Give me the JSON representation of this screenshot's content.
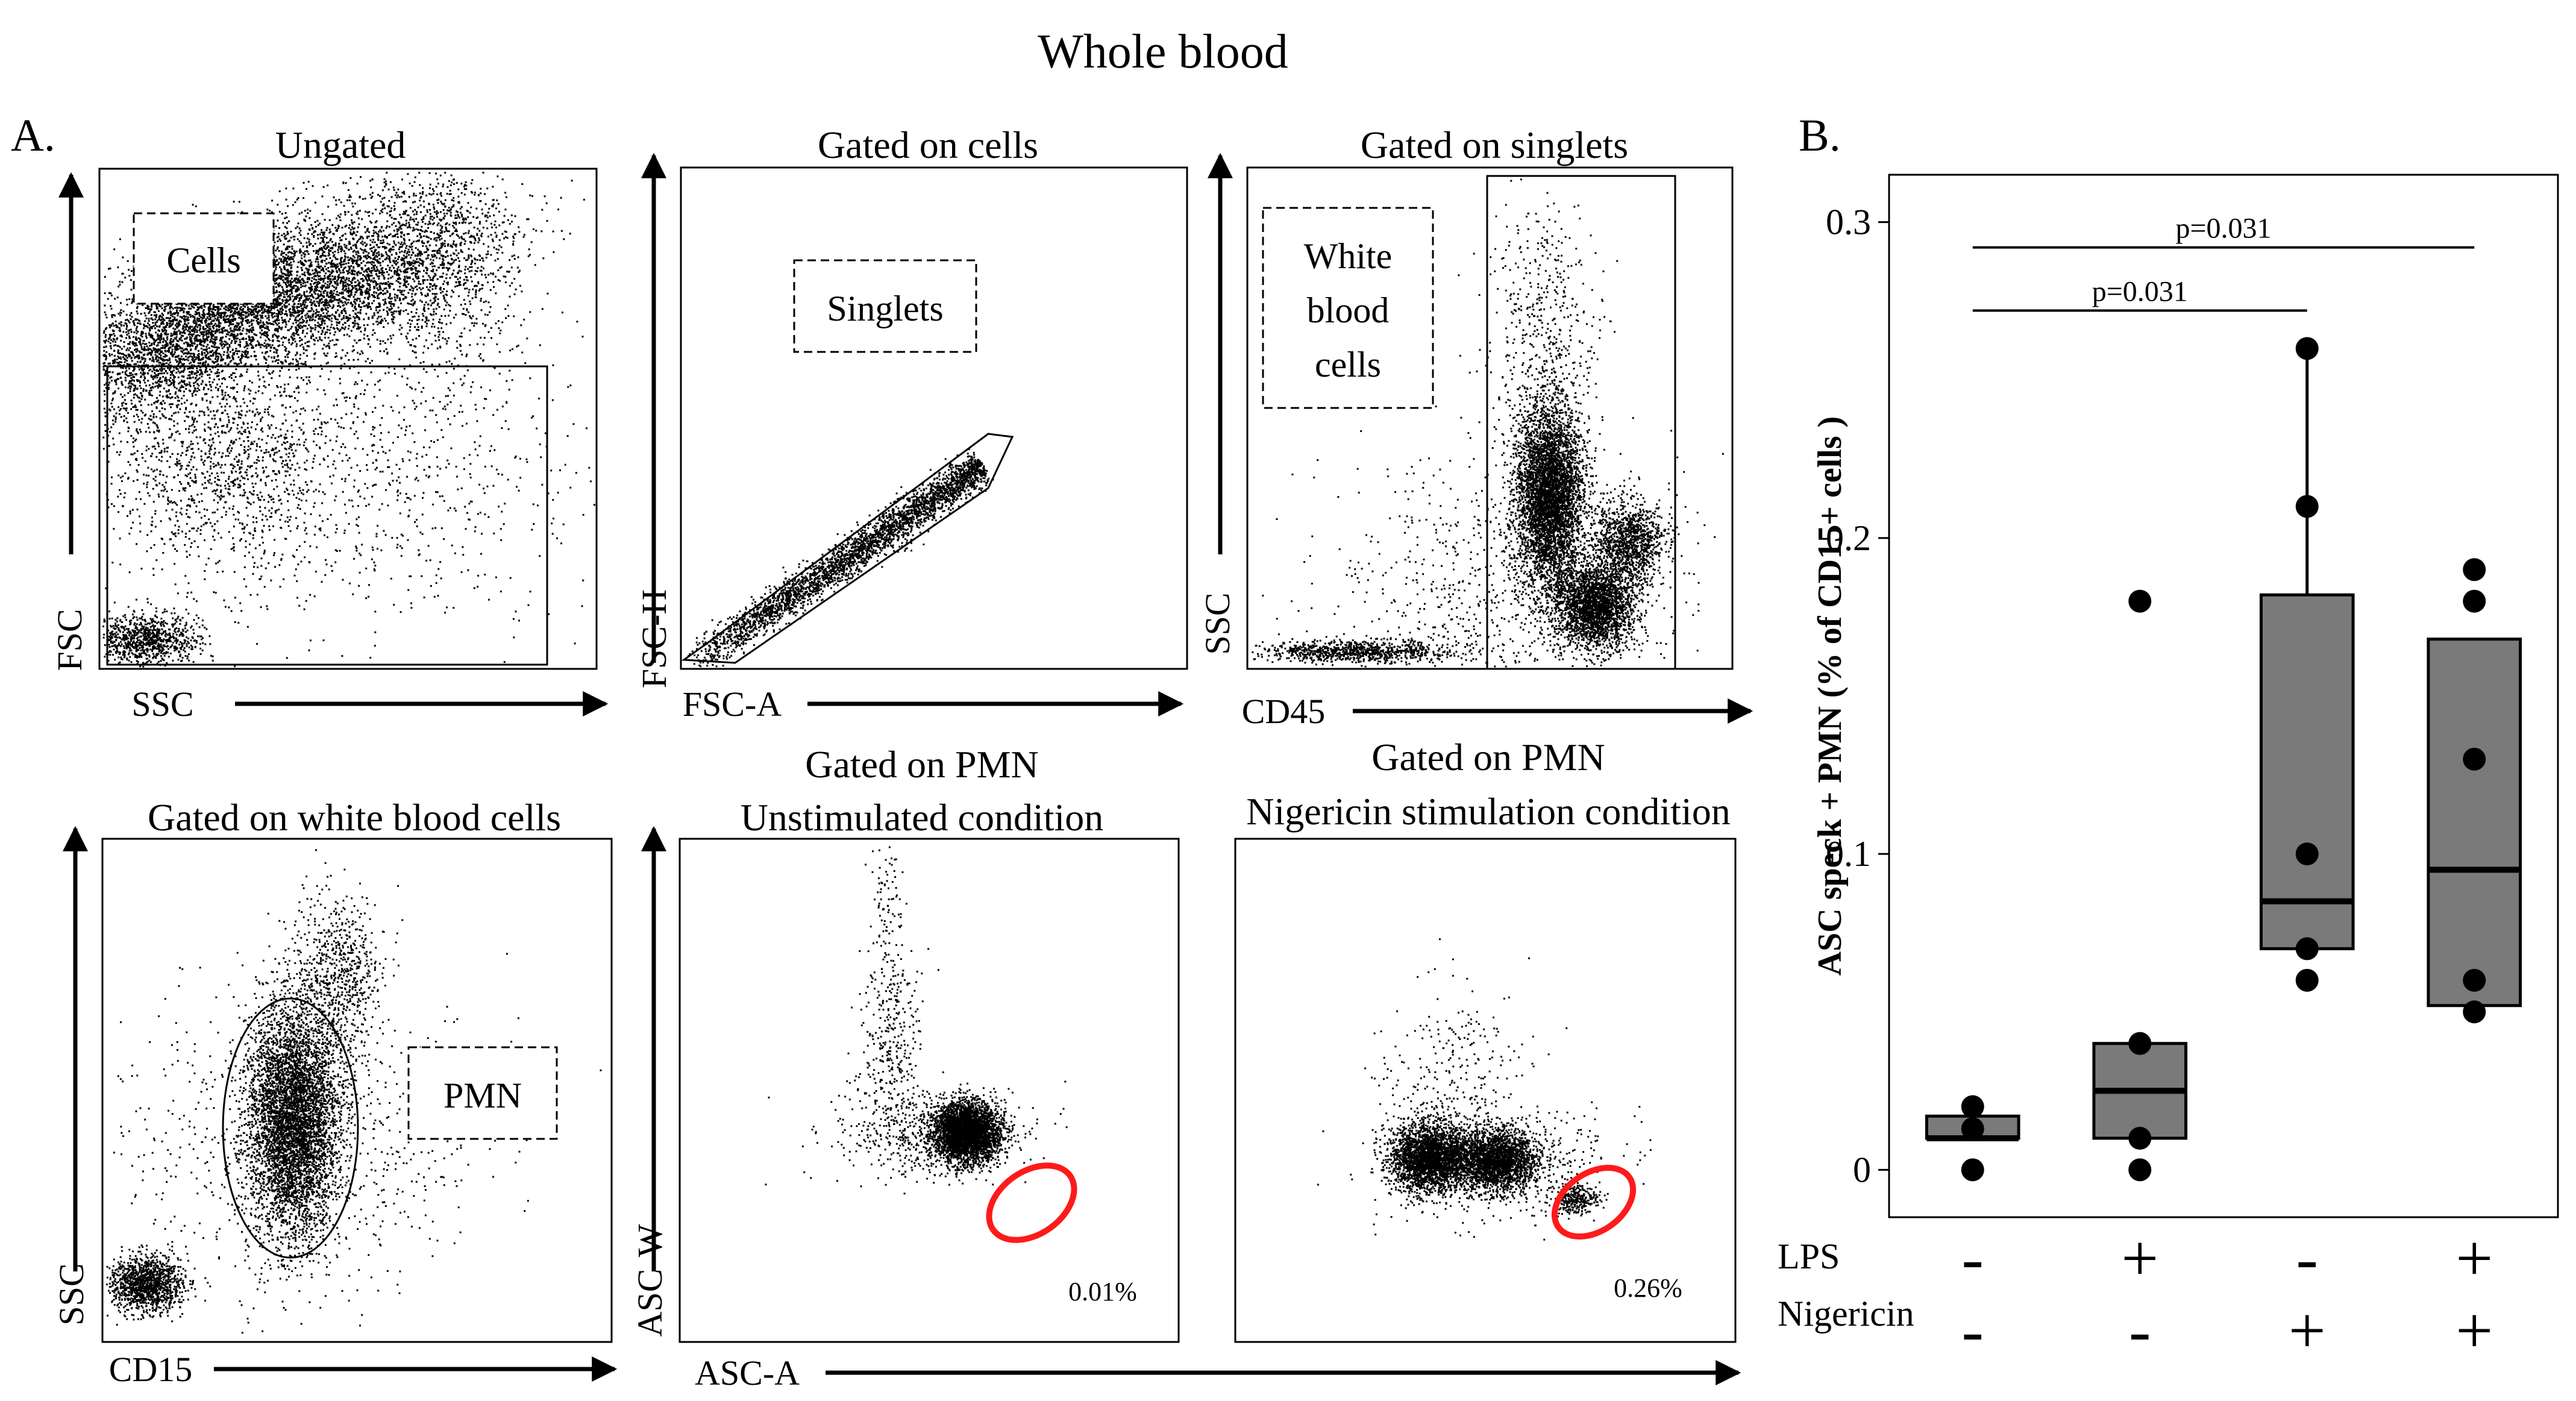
{
  "title": "Whole blood",
  "panel_a": {
    "label": "A.",
    "plots": [
      {
        "title": "Ungated",
        "x_axis": "SSC",
        "y_axis": "FSC",
        "gate_label": [
          "Cells"
        ]
      },
      {
        "title": "Gated on cells",
        "x_axis": "FSC-A",
        "y_axis": "FSC-H",
        "gate_label": [
          "Singlets"
        ]
      },
      {
        "title": "Gated on singlets",
        "x_axis": "CD45",
        "y_axis": "SSC",
        "gate_label": [
          "White",
          "blood",
          "cells"
        ]
      },
      {
        "title": "Gated on white blood cells",
        "x_axis": "CD15",
        "y_axis": "SSC",
        "gate_label": [
          "PMN"
        ]
      },
      {
        "title_line1": "Gated on PMN",
        "title_line2": "Unstimulated condition",
        "percent": "0.01%"
      },
      {
        "title_line1": "Gated on PMN",
        "title_line2": "Nigericin stimulation condition",
        "percent": "0.26%"
      }
    ],
    "shared_x_axis": "ASC-A",
    "shared_y_axis": "ASC-W"
  },
  "panel_b": {
    "label": "B.",
    "row_labels": [
      "LPS",
      "Nigericin"
    ],
    "conditions": [
      {
        "lps": "-",
        "nigericin": "-"
      },
      {
        "lps": "+",
        "nigericin": "-"
      },
      {
        "lps": "-",
        "nigericin": "+"
      },
      {
        "lps": "+",
        "nigericin": "+"
      }
    ],
    "significance": [
      {
        "from": 1,
        "to": 3,
        "label": "p=0.031"
      },
      {
        "from": 1,
        "to": 4,
        "label": "p=0.031"
      }
    ]
  },
  "chart_data": {
    "type": "box",
    "ylabel": "ASC speck + PMN (% of CD15+ cells )",
    "xlabel": "",
    "ylim": [
      -0.015,
      0.315
    ],
    "yticks": [
      0,
      0.1,
      0.2,
      0.3
    ],
    "ytick_labels": [
      "0",
      "0.1",
      "0.2",
      "0.3"
    ],
    "categories": [
      "LPS- Nigericin-",
      "LPS+ Nigericin-",
      "LPS- Nigericin+",
      "LPS+ Nigericin+"
    ],
    "boxes": [
      {
        "q1": 0.01,
        "median": 0.01,
        "q3": 0.017,
        "whisker_low": 0.01,
        "whisker_high": 0.017
      },
      {
        "q1": 0.01,
        "median": 0.025,
        "q3": 0.04,
        "whisker_low": 0.01,
        "whisker_high": 0.04
      },
      {
        "q1": 0.07,
        "median": 0.085,
        "q3": 0.182,
        "whisker_low": 0.07,
        "whisker_high": 0.26
      },
      {
        "q1": 0.052,
        "median": 0.095,
        "q3": 0.168,
        "whisker_low": 0.052,
        "whisker_high": 0.168
      }
    ],
    "points": [
      [
        0.0,
        0.013,
        0.02
      ],
      [
        0.0,
        0.01,
        0.04,
        0.18
      ],
      [
        0.06,
        0.07,
        0.1,
        0.21,
        0.26
      ],
      [
        0.05,
        0.06,
        0.13,
        0.18,
        0.19
      ]
    ]
  }
}
